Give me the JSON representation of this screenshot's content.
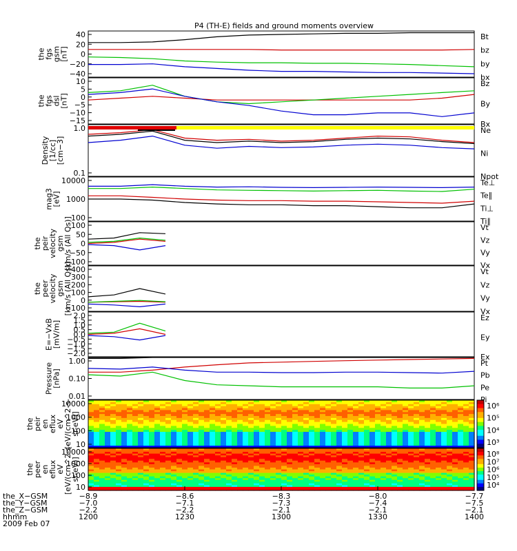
{
  "chart_data": {
    "type": "line",
    "title": "P4 (TH-E) fields and ground moments overview",
    "x_range": [
      "2009-02-07 12:00",
      "2009-02-07 14:00"
    ],
    "panels": [
      {
        "id": "fgs_gsm",
        "ylabel": [
          "the",
          "fgs",
          "gsm",
          "[nT]"
        ],
        "ylim": [
          -40,
          40
        ],
        "ticks": [
          "40",
          "20",
          "0",
          "−20",
          "−40"
        ],
        "series": [
          {
            "name": "Bt",
            "color": "#000000",
            "values": [
              20,
              20,
              21,
              25,
              30,
              33,
              34,
              35,
              36,
              36,
              37,
              37,
              37
            ]
          },
          {
            "name": "bz",
            "color": "#d00000",
            "values": [
              8,
              8,
              8,
              8,
              8,
              8,
              7,
              7,
              7,
              7,
              7,
              7,
              8
            ]
          },
          {
            "name": "by",
            "color": "#00c000",
            "values": [
              -5,
              -6,
              -8,
              -12,
              -14,
              -15,
              -15,
              -16,
              -16,
              -17,
              -18,
              -20,
              -22
            ]
          },
          {
            "name": "bx",
            "color": "#0000d0",
            "values": [
              -18,
              -18,
              -17,
              -22,
              -25,
              -28,
              -30,
              -30,
              -31,
              -32,
              -32,
              -33,
              -34
            ]
          }
        ]
      },
      {
        "id": "fgs_dsl",
        "ylabel": [
          "the",
          "fgs",
          "dsl",
          "[nT]"
        ],
        "ylim": [
          -15,
          10
        ],
        "ticks": [
          "10",
          "5",
          "0",
          "−5",
          "−10",
          "−15"
        ],
        "series": [
          {
            "name": "Bz",
            "color": "#d00000",
            "values": [
              -2,
              -1,
              0,
              -1,
              -2,
              -2,
              -2,
              -2,
              -2,
              -2,
              -2,
              -1,
              1
            ]
          },
          {
            "name": "By",
            "color": "#00c000",
            "values": [
              2,
              3,
              6,
              0,
              -3,
              -4,
              -3,
              -2,
              -1,
              0,
              1,
              2,
              3
            ]
          },
          {
            "name": "Bx",
            "color": "#0000d0",
            "values": [
              1,
              2,
              4,
              0,
              -3,
              -5,
              -8,
              -10,
              -10,
              -9,
              -9,
              -11,
              -9
            ]
          }
        ]
      },
      {
        "id": "density",
        "ylabel": [
          "Density",
          "[1/cc]",
          "[cm−3]"
        ],
        "ylim": [
          0.1,
          1.0
        ],
        "log": true,
        "ticks": [
          "1.0",
          "0.1"
        ],
        "series": [
          {
            "name": "Ne",
            "color": "#d00000",
            "values": [
              0.65,
              0.7,
              0.8,
              0.55,
              0.5,
              0.52,
              0.48,
              0.5,
              0.55,
              0.6,
              0.58,
              0.5,
              0.45
            ]
          },
          {
            "name": "Ni",
            "color": "#000000",
            "values": [
              0.6,
              0.65,
              0.75,
              0.5,
              0.45,
              0.48,
              0.45,
              0.47,
              0.52,
              0.55,
              0.53,
              0.47,
              0.43
            ]
          },
          {
            "name": "Npot",
            "color": "#0000d0",
            "values": [
              0.45,
              0.5,
              0.6,
              0.4,
              0.35,
              0.38,
              0.36,
              0.37,
              0.4,
              0.42,
              0.4,
              0.36,
              0.34
            ]
          }
        ]
      },
      {
        "id": "temperature",
        "ylabel": [
          "mag3",
          "[eV]"
        ],
        "ylim": [
          100,
          10000
        ],
        "log": true,
        "ticks": [
          "10000",
          "1000",
          "100"
        ],
        "series": [
          {
            "name": "Te⊥",
            "color": "#d00000",
            "values": [
              1400,
              1400,
              1200,
              1000,
              900,
              850,
              850,
              800,
              800,
              750,
              700,
              650,
              800
            ]
          },
          {
            "name": "Te∥",
            "color": "#000000",
            "values": [
              1000,
              1000,
              900,
              700,
              600,
              550,
              550,
              500,
              500,
              450,
              400,
              400,
              600
            ]
          },
          {
            "name": "Ti⊥",
            "color": "#0000d0",
            "values": [
              3800,
              3800,
              4500,
              3800,
              3500,
              3600,
              3400,
              3300,
              3400,
              3500,
              3400,
              3300,
              3500
            ]
          },
          {
            "name": "Ti∥",
            "color": "#00c000",
            "values": [
              3000,
              3000,
              3500,
              3000,
              2600,
              2500,
              2400,
              2300,
              2400,
              2500,
              2300,
              2200,
              2800
            ]
          }
        ]
      },
      {
        "id": "peir_velocity",
        "ylabel": [
          "the",
          "peir",
          "velocity",
          "gsm",
          "[km/s (All Qs)]"
        ],
        "ylim": [
          -100,
          100
        ],
        "ticks": [
          "100",
          "50",
          "0",
          "−50",
          "−100"
        ],
        "series": [
          {
            "name": "Vt",
            "color": "#000000",
            "values": [
              20,
              25,
              50,
              45
            ]
          },
          {
            "name": "Vz",
            "color": "#d00000",
            "values": [
              0,
              5,
              20,
              10
            ]
          },
          {
            "name": "Vy",
            "color": "#00c000",
            "values": [
              5,
              10,
              25,
              15
            ]
          },
          {
            "name": "Vx",
            "color": "#0000d0",
            "values": [
              -5,
              -10,
              -30,
              -10
            ]
          }
        ]
      },
      {
        "id": "peer_velocity",
        "ylabel": [
          "the",
          "peer",
          "velocity",
          "gsm",
          "[km/s (All Qs)]"
        ],
        "ylim": [
          -100,
          400
        ],
        "ticks": [
          "400",
          "300",
          "200",
          "100",
          "0",
          "−100"
        ],
        "series": [
          {
            "name": "Vt",
            "color": "#000000",
            "values": [
              60,
              80,
              150,
              90
            ]
          },
          {
            "name": "Vz",
            "color": "#d00000",
            "values": [
              0,
              5,
              10,
              0
            ]
          },
          {
            "name": "Vy",
            "color": "#00c000",
            "values": [
              0,
              10,
              20,
              5
            ]
          },
          {
            "name": "Vx",
            "color": "#0000d0",
            "values": [
              -20,
              -30,
              -50,
              -20
            ]
          }
        ]
      },
      {
        "id": "efield",
        "ylabel": [
          "E=−VxB",
          "[mV/m]"
        ],
        "ylim": [
          -2.0,
          2.0
        ],
        "ticks": [
          "2.0",
          "1.5",
          "1.0",
          "0.5",
          "0.0",
          "−0.5",
          "−1.0",
          "−1.5",
          "−2.0"
        ],
        "series": [
          {
            "name": "Ez",
            "color": "#d00000",
            "values": [
              0,
              0.1,
              0.5,
              0
            ]
          },
          {
            "name": "Ey",
            "color": "#00c000",
            "values": [
              0.1,
              0.2,
              1.0,
              0.3
            ]
          },
          {
            "name": "Ex",
            "color": "#0000d0",
            "values": [
              -0.1,
              -0.2,
              -0.5,
              -0.1
            ]
          }
        ]
      },
      {
        "id": "pressure",
        "ylabel": [
          "Pressure",
          "[nPa]"
        ],
        "ylim": [
          0.01,
          1.0
        ],
        "log": true,
        "ticks": [
          "1.00",
          "0.10",
          "0.01"
        ],
        "series": [
          {
            "name": "Pt",
            "color": "#000000",
            "values": [
              0.9,
              0.9,
              1.0,
              1.0,
              1.0,
              1.0,
              1.0,
              1.0,
              1.0,
              1.0,
              1.0,
              1.0,
              1.0
            ]
          },
          {
            "name": "Pb",
            "color": "#d00000",
            "values": [
              0.2,
              0.2,
              0.25,
              0.35,
              0.45,
              0.55,
              0.6,
              0.65,
              0.7,
              0.75,
              0.8,
              0.85,
              0.9
            ]
          },
          {
            "name": "Pe",
            "color": "#00c000",
            "values": [
              0.15,
              0.13,
              0.2,
              0.08,
              0.05,
              0.045,
              0.04,
              0.04,
              0.04,
              0.04,
              0.035,
              0.035,
              0.045
            ]
          },
          {
            "name": "Pi",
            "color": "#0000d0",
            "values": [
              0.3,
              0.28,
              0.35,
              0.25,
              0.2,
              0.2,
              0.19,
              0.19,
              0.2,
              0.2,
              0.19,
              0.18,
              0.22
            ]
          }
        ]
      },
      {
        "id": "peir_spectrogram",
        "type": "heatmap",
        "ylabel": [
          "the",
          "peir",
          "en",
          "eflux",
          "eV",
          "[eV/(cm^2-s-",
          "sr-eV)]"
        ],
        "ylim": [
          5,
          30000
        ],
        "log": true,
        "ticks": [
          "10000",
          "1000",
          "100",
          "10"
        ],
        "colorbar_ticks": [
          "10⁶",
          "10⁵",
          "10⁴",
          "10³"
        ],
        "colorbar_range": [
          1000,
          1000000
        ]
      },
      {
        "id": "peer_spectrogram",
        "type": "heatmap",
        "ylabel": [
          "the",
          "peer",
          "en",
          "eflux",
          "eV",
          "[eV/(cm^2-s-",
          "sr-eV)]"
        ],
        "ylim": [
          5,
          30000
        ],
        "log": true,
        "ticks": [
          "10000",
          "1000",
          "100",
          "10"
        ],
        "colorbar_ticks": [
          "10⁸",
          "10⁷",
          "10⁶",
          "10⁵",
          "10⁴"
        ],
        "colorbar_range": [
          10000,
          100000000
        ]
      }
    ],
    "x_axis": {
      "row_labels": [
        "the_X−GSM",
        "the_Y−GSM",
        "the_Z−GSM",
        "hhmm",
        "2009 Feb 07"
      ],
      "ticks": [
        {
          "values": [
            "−8.9",
            "−7.0",
            "−2.2",
            "1200"
          ]
        },
        {
          "values": [
            "−8.6",
            "−7.1",
            "−2.2",
            "1230"
          ]
        },
        {
          "values": [
            "−8.3",
            "−7.3",
            "−2.1",
            "1300"
          ]
        },
        {
          "values": [
            "−8.0",
            "−7.4",
            "−2.1",
            "1330"
          ]
        },
        {
          "values": [
            "−7.7",
            "−7.5",
            "−2.1",
            "1400"
          ]
        }
      ]
    }
  }
}
